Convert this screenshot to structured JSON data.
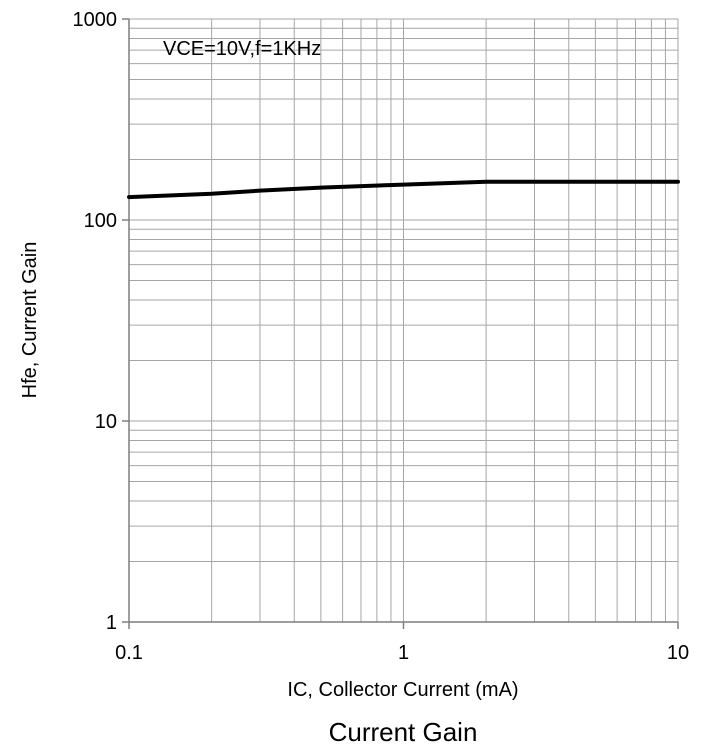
{
  "chart_data": {
    "type": "line",
    "title": "Current Gain",
    "xlabel": "IC, Collector Current (mA)",
    "ylabel": "Hfe, Current Gain",
    "annotation": "VCE=10V,f=1KHz",
    "x_scale": "log",
    "y_scale": "log",
    "xlim": [
      0.1,
      10
    ],
    "ylim": [
      1,
      1000
    ],
    "x_ticks": [
      "0.1",
      "1",
      "10"
    ],
    "y_ticks": [
      "1",
      "10",
      "100",
      "1000"
    ],
    "grid": true,
    "series": [
      {
        "x": [
          0.1,
          0.2,
          0.3,
          0.5,
          1,
          2,
          5,
          10
        ],
        "y": [
          130,
          135,
          140,
          145,
          150,
          155,
          155,
          155
        ]
      }
    ],
    "line_color": "#000000",
    "grid_color": "#a6a6a6"
  }
}
